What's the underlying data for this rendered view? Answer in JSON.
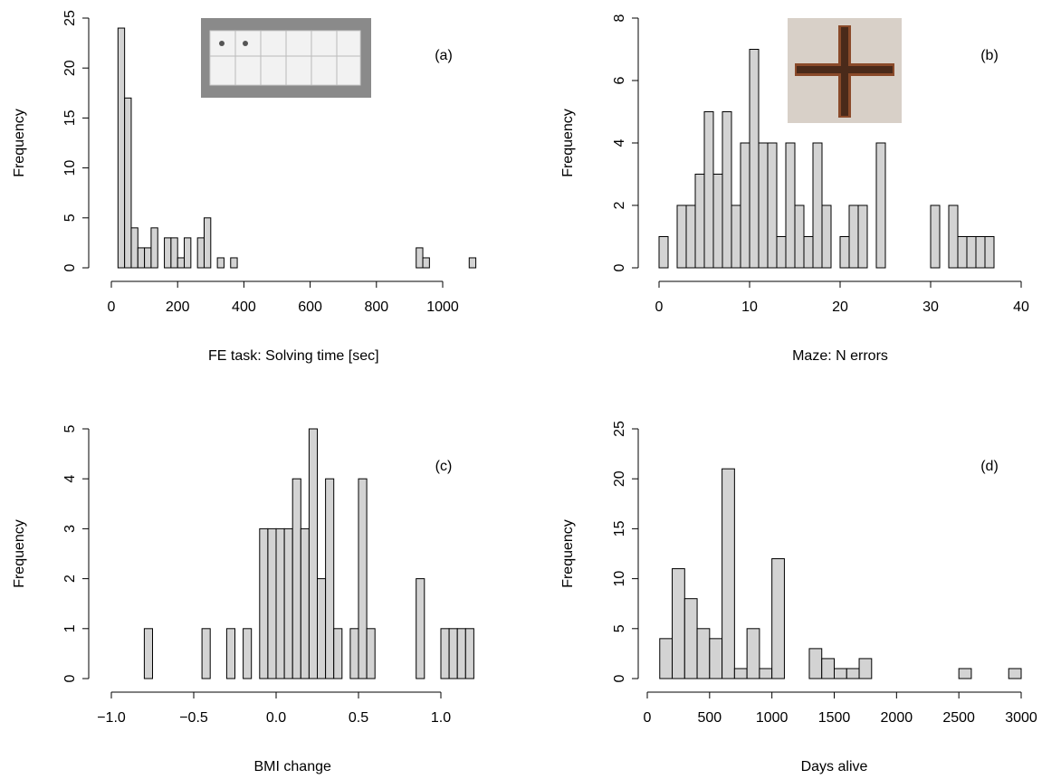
{
  "chart_data": [
    {
      "type": "histogram",
      "xlabel": "FE task: Solving time [sec]",
      "ylabel": "Frequency",
      "annotation": "(a)",
      "color": "#d3d3d3",
      "bins": [
        20,
        40,
        60,
        80,
        100,
        120,
        140,
        160,
        180,
        200,
        220,
        240,
        260,
        280,
        300,
        320,
        340,
        360,
        380,
        400,
        420,
        440,
        460,
        480,
        500,
        520,
        540,
        560,
        580,
        600,
        620,
        640,
        660,
        680,
        700,
        720,
        740,
        760,
        780,
        800,
        820,
        840,
        860,
        880,
        900,
        920,
        940,
        960,
        980,
        1000,
        1020,
        1040,
        1060,
        1080,
        1100
      ],
      "values": [
        24,
        17,
        4,
        2,
        2,
        4,
        0,
        3,
        3,
        1,
        3,
        0,
        3,
        5,
        0,
        1,
        0,
        1,
        0,
        0,
        0,
        0,
        0,
        0,
        0,
        0,
        0,
        0,
        0,
        0,
        0,
        0,
        0,
        0,
        0,
        0,
        0,
        0,
        0,
        0,
        0,
        0,
        0,
        0,
        0,
        2,
        1,
        0,
        0,
        0,
        0,
        0,
        0,
        1
      ],
      "xlim": [
        0,
        1100
      ],
      "xticks": [
        0,
        200,
        400,
        600,
        800,
        1000
      ],
      "ylim": [
        0,
        25
      ],
      "yticks": [
        0,
        5,
        10,
        15,
        20,
        25
      ]
    },
    {
      "type": "histogram",
      "xlabel": "Maze: N errors",
      "ylabel": "Frequency",
      "annotation": "(b)",
      "color": "#d3d3d3",
      "bins": [
        0,
        1,
        2,
        3,
        4,
        5,
        6,
        7,
        8,
        9,
        10,
        11,
        12,
        13,
        14,
        15,
        16,
        17,
        18,
        19,
        20,
        21,
        22,
        23,
        24,
        25,
        26,
        27,
        28,
        29,
        30,
        31,
        32,
        33,
        34,
        35,
        36,
        37
      ],
      "values": [
        1,
        0,
        2,
        2,
        3,
        5,
        3,
        5,
        2,
        4,
        7,
        4,
        4,
        1,
        4,
        2,
        1,
        4,
        2,
        0,
        1,
        2,
        2,
        0,
        4,
        0,
        0,
        0,
        0,
        0,
        2,
        0,
        2,
        1,
        1,
        1,
        1
      ],
      "xlim": [
        0,
        40
      ],
      "xticks": [
        0,
        10,
        20,
        30,
        40
      ],
      "ylim": [
        0,
        8
      ],
      "yticks": [
        0,
        2,
        4,
        6,
        8
      ]
    },
    {
      "type": "histogram",
      "xlabel": "BMI change",
      "ylabel": "Frequency",
      "annotation": "(c)",
      "color": "#d3d3d3",
      "bins": [
        -0.8,
        -0.75,
        -0.7,
        -0.65,
        -0.6,
        -0.55,
        -0.5,
        -0.45,
        -0.4,
        -0.35,
        -0.3,
        -0.25,
        -0.2,
        -0.15,
        -0.1,
        -0.05,
        0,
        0.05,
        0.1,
        0.15,
        0.2,
        0.25,
        0.3,
        0.35,
        0.4,
        0.45,
        0.5,
        0.55,
        0.6,
        0.65,
        0.7,
        0.75,
        0.8,
        0.85,
        0.9,
        0.95,
        1.0,
        1.05,
        1.1,
        1.15,
        1.2
      ],
      "values": [
        1,
        0,
        0,
        0,
        0,
        0,
        0,
        1,
        0,
        0,
        1,
        0,
        1,
        0,
        3,
        3,
        3,
        3,
        4,
        3,
        5,
        2,
        4,
        1,
        0,
        1,
        4,
        1,
        0,
        0,
        0,
        0,
        0,
        2,
        0,
        0,
        1,
        1,
        1,
        1
      ],
      "xlim": [
        -1.0,
        1.2
      ],
      "xticks": [
        {
          "value": -1.0,
          "label": "−1.0"
        },
        {
          "value": -0.5,
          "label": "−0.5"
        },
        {
          "value": 0,
          "label": "0.0"
        },
        {
          "value": 0.5,
          "label": "0.5"
        },
        {
          "value": 1.0,
          "label": "1.0"
        }
      ],
      "ylim": [
        0,
        5
      ],
      "yticks": [
        0,
        1,
        2,
        3,
        4,
        5
      ]
    },
    {
      "type": "histogram",
      "xlabel": "Days alive",
      "ylabel": "Frequency",
      "annotation": "(d)",
      "color": "#d3d3d3",
      "bins": [
        100,
        200,
        300,
        400,
        500,
        600,
        700,
        800,
        900,
        1000,
        1100,
        1200,
        1300,
        1400,
        1500,
        1600,
        1700,
        1800,
        1900,
        2000,
        2100,
        2200,
        2300,
        2400,
        2500,
        2600,
        2700,
        2800,
        2900,
        3000
      ],
      "values": [
        4,
        11,
        8,
        5,
        4,
        21,
        1,
        5,
        1,
        12,
        0,
        0,
        3,
        2,
        1,
        1,
        2,
        0,
        0,
        0,
        0,
        0,
        0,
        0,
        1,
        0,
        0,
        0,
        1
      ],
      "xlim": [
        0,
        3000
      ],
      "xticks": [
        0,
        500,
        1000,
        1500,
        2000,
        2500,
        3000
      ],
      "ylim": [
        0,
        25
      ],
      "yticks": [
        0,
        5,
        10,
        15,
        20,
        25
      ]
    }
  ]
}
